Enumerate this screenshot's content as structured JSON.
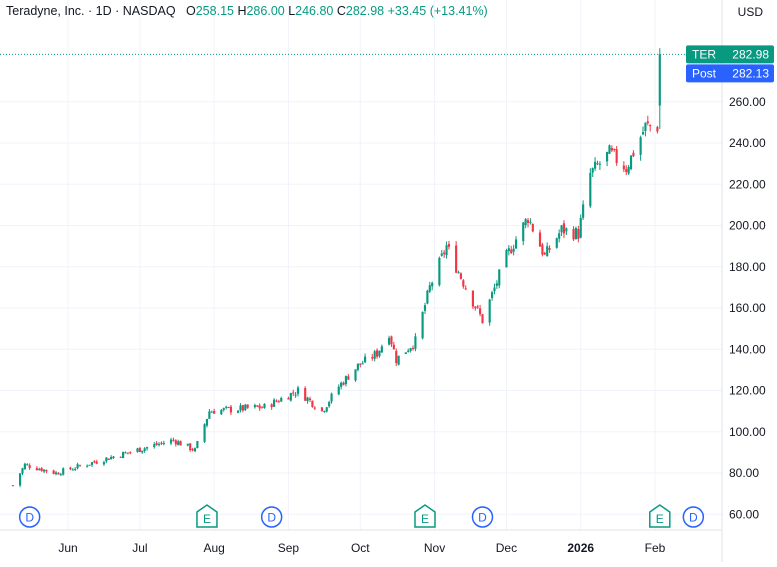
{
  "header": {
    "company": "Teradyne, Inc.",
    "interval": "1D",
    "exchange": "NASDAQ",
    "open_label": "O",
    "open": "258.15",
    "high_label": "H",
    "high": "286.00",
    "low_label": "L",
    "low": "246.80",
    "close_label": "C",
    "close": "282.98",
    "change": "+33.45",
    "change_pct": "(+13.41%)",
    "currency": "USD"
  },
  "badges": {
    "symbol": "TER",
    "symbol_price": "282.98",
    "post_label": "Post",
    "post_price": "282.13"
  },
  "colors": {
    "up": "#089981",
    "down": "#f23645",
    "post": "#2962ff",
    "grid": "#f0f3fa",
    "axis_text": "#131722"
  },
  "chart_data": {
    "type": "candlestick",
    "ylim": [
      55,
      292
    ],
    "y_ticks": [
      60,
      80,
      100,
      120,
      140,
      160,
      180,
      200,
      220,
      240,
      260
    ],
    "x_ticks": [
      {
        "date": "2025-06-01",
        "label": "Jun"
      },
      {
        "date": "2025-07-01",
        "label": "Jul"
      },
      {
        "date": "2025-08-01",
        "label": "Aug"
      },
      {
        "date": "2025-09-01",
        "label": "Sep"
      },
      {
        "date": "2025-10-01",
        "label": "Oct"
      },
      {
        "date": "2025-11-01",
        "label": "Nov"
      },
      {
        "date": "2025-12-01",
        "label": "Dec"
      },
      {
        "date": "2026-01-01",
        "label": "2026"
      },
      {
        "date": "2026-02-01",
        "label": "Feb"
      }
    ],
    "key_closes": [
      {
        "date": "2025-05-09",
        "close": 74
      },
      {
        "date": "2025-05-14",
        "close": 84
      },
      {
        "date": "2025-05-27",
        "close": 80
      },
      {
        "date": "2025-06-20",
        "close": 88
      },
      {
        "date": "2025-07-15",
        "close": 96
      },
      {
        "date": "2025-07-24",
        "close": 91
      },
      {
        "date": "2025-07-30",
        "close": 110
      },
      {
        "date": "2025-08-22",
        "close": 112
      },
      {
        "date": "2025-09-05",
        "close": 120
      },
      {
        "date": "2025-09-15",
        "close": 110
      },
      {
        "date": "2025-09-22",
        "close": 122
      },
      {
        "date": "2025-09-30",
        "close": 132
      },
      {
        "date": "2025-10-08",
        "close": 138
      },
      {
        "date": "2025-10-13",
        "close": 148
      },
      {
        "date": "2025-10-16",
        "close": 135
      },
      {
        "date": "2025-10-24",
        "close": 144
      },
      {
        "date": "2025-10-30",
        "close": 170
      },
      {
        "date": "2025-11-06",
        "close": 190
      },
      {
        "date": "2025-11-14",
        "close": 170
      },
      {
        "date": "2025-11-21",
        "close": 154
      },
      {
        "date": "2025-12-01",
        "close": 185
      },
      {
        "date": "2025-12-10",
        "close": 204
      },
      {
        "date": "2025-12-17",
        "close": 185
      },
      {
        "date": "2025-12-24",
        "close": 198
      },
      {
        "date": "2025-12-31",
        "close": 196
      },
      {
        "date": "2026-01-05",
        "close": 225
      },
      {
        "date": "2026-01-13",
        "close": 235
      },
      {
        "date": "2026-01-20",
        "close": 228
      },
      {
        "date": "2026-01-28",
        "close": 248
      },
      {
        "date": "2026-02-02",
        "close": 248
      },
      {
        "date": "2026-02-03",
        "close": 282.98
      }
    ],
    "last_candle": {
      "date": "2026-02-03",
      "open": 258.15,
      "high": 286.0,
      "low": 246.8,
      "close": 282.98
    },
    "events": [
      {
        "date": "2025-05-16",
        "type": "D"
      },
      {
        "date": "2025-07-29",
        "type": "E"
      },
      {
        "date": "2025-08-25",
        "type": "D"
      },
      {
        "date": "2025-10-28",
        "type": "E"
      },
      {
        "date": "2025-11-21",
        "type": "D"
      },
      {
        "date": "2026-02-03",
        "type": "E"
      },
      {
        "date": "2026-02-17",
        "type": "D"
      }
    ]
  }
}
